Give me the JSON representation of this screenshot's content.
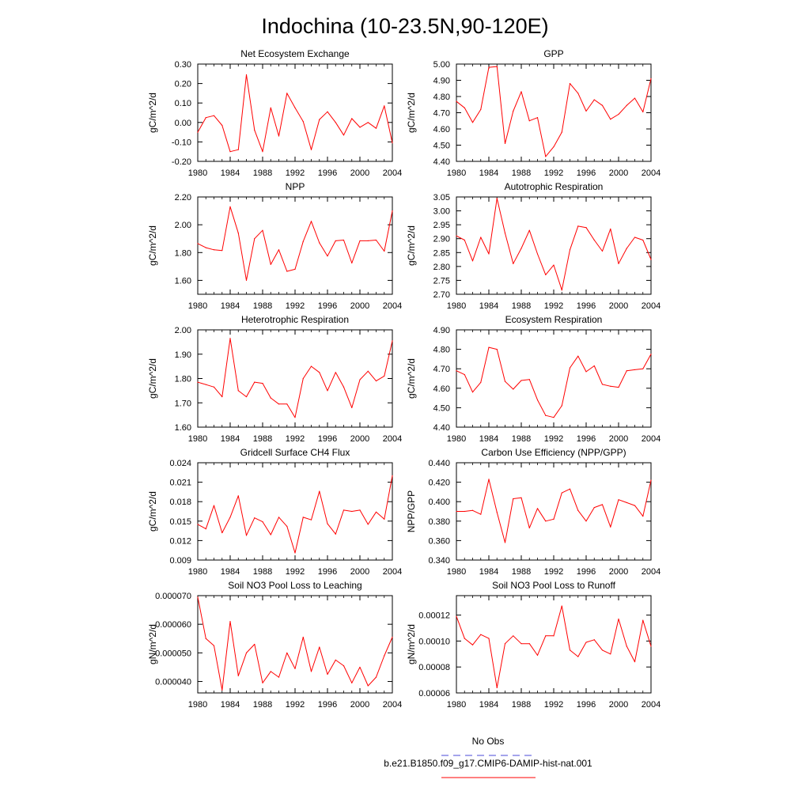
{
  "figure": {
    "title": "Indochina (10-23.5N,90-120E)"
  },
  "legend": {
    "entries": [
      {
        "label": "No Obs",
        "color": "#4a4ad8",
        "dash": "dashed"
      },
      {
        "label": "b.e21.B1850.f09_g17.CMIP6-DAMIP-hist-nat.001",
        "color": "#ff0000",
        "dash": "solid"
      }
    ]
  },
  "colors": {
    "series": "#ff0000",
    "axis": "#000000"
  },
  "chart_data": [
    {
      "type": "line",
      "title": "Net Ecosystem Exchange",
      "ylabel": "gC/m^2/d",
      "xlim": [
        1980,
        2004
      ],
      "ylim": [
        -0.2,
        0.3
      ],
      "xticks": [
        "1980",
        "1984",
        "1988",
        "1992",
        "1996",
        "2000",
        "2004"
      ],
      "yticks": [
        "-0.20",
        "-0.10",
        "0.00",
        "0.10",
        "0.20",
        "0.30"
      ],
      "x": [
        1980,
        1981,
        1982,
        1983,
        1984,
        1985,
        1986,
        1987,
        1988,
        1989,
        1990,
        1991,
        1992,
        1993,
        1994,
        1995,
        1996,
        1997,
        1998,
        1999,
        2000,
        2001,
        2002,
        2003,
        2004
      ],
      "series": [
        {
          "values": [
            -0.05,
            0.025,
            0.035,
            -0.015,
            -0.15,
            -0.14,
            0.245,
            -0.04,
            -0.15,
            0.075,
            -0.07,
            0.15,
            0.075,
            0.005,
            -0.14,
            0.015,
            0.055,
            0.0,
            -0.065,
            0.02,
            -0.025,
            0.0,
            -0.03,
            0.085,
            -0.105
          ]
        }
      ]
    },
    {
      "type": "line",
      "title": "GPP",
      "ylabel": "gC/m^2/d",
      "xlim": [
        1980,
        2004
      ],
      "ylim": [
        4.4,
        5.0
      ],
      "xticks": [
        "1980",
        "1984",
        "1988",
        "1992",
        "1996",
        "2000",
        "2004"
      ],
      "yticks": [
        "4.40",
        "4.50",
        "4.60",
        "4.70",
        "4.80",
        "4.90",
        "5.00"
      ],
      "x": [
        1980,
        1981,
        1982,
        1983,
        1984,
        1985,
        1986,
        1987,
        1988,
        1989,
        1990,
        1991,
        1992,
        1993,
        1994,
        1995,
        1996,
        1997,
        1998,
        1999,
        2000,
        2001,
        2002,
        2003,
        2004
      ],
      "series": [
        {
          "values": [
            4.77,
            4.73,
            4.64,
            4.72,
            4.98,
            4.985,
            4.51,
            4.71,
            4.83,
            4.65,
            4.67,
            4.43,
            4.49,
            4.58,
            4.88,
            4.82,
            4.71,
            4.78,
            4.745,
            4.66,
            4.69,
            4.745,
            4.79,
            4.705,
            4.91
          ]
        }
      ]
    },
    {
      "type": "line",
      "title": "NPP",
      "ylabel": "gC/m^2/d",
      "xlim": [
        1980,
        2004
      ],
      "ylim": [
        1.5,
        2.2
      ],
      "xticks": [
        "1980",
        "1984",
        "1988",
        "1992",
        "1996",
        "2000",
        "2004"
      ],
      "yticks": [
        "1.60",
        "1.80",
        "2.00",
        "2.20"
      ],
      "x": [
        1980,
        1981,
        1982,
        1983,
        1984,
        1985,
        1986,
        1987,
        1988,
        1989,
        1990,
        1991,
        1992,
        1993,
        1994,
        1995,
        1996,
        1997,
        1998,
        1999,
        2000,
        2001,
        2002,
        2003,
        2004
      ],
      "series": [
        {
          "values": [
            1.865,
            1.835,
            1.82,
            1.815,
            2.13,
            1.94,
            1.6,
            1.9,
            1.96,
            1.715,
            1.82,
            1.665,
            1.68,
            1.88,
            2.025,
            1.87,
            1.775,
            1.885,
            1.89,
            1.725,
            1.885,
            1.885,
            1.89,
            1.81,
            2.1
          ]
        }
      ]
    },
    {
      "type": "line",
      "title": "Autotrophic Respiration",
      "ylabel": "gC/m^2/d",
      "xlim": [
        1980,
        2004
      ],
      "ylim": [
        2.7,
        3.05
      ],
      "xticks": [
        "1980",
        "1984",
        "1988",
        "1992",
        "1996",
        "2000",
        "2004"
      ],
      "yticks": [
        "2.70",
        "2.75",
        "2.80",
        "2.85",
        "2.90",
        "2.95",
        "3.00",
        "3.05"
      ],
      "x": [
        1980,
        1981,
        1982,
        1983,
        1984,
        1985,
        1986,
        1987,
        1988,
        1989,
        1990,
        1991,
        1992,
        1993,
        1994,
        1995,
        1996,
        1997,
        1998,
        1999,
        2000,
        2001,
        2002,
        2003,
        2004
      ],
      "series": [
        {
          "values": [
            2.91,
            2.895,
            2.82,
            2.905,
            2.845,
            3.045,
            2.92,
            2.81,
            2.865,
            2.93,
            2.845,
            2.77,
            2.805,
            2.715,
            2.86,
            2.945,
            2.94,
            2.895,
            2.855,
            2.935,
            2.81,
            2.865,
            2.905,
            2.895,
            2.825
          ]
        }
      ]
    },
    {
      "type": "line",
      "title": "Heterotrophic Respiration",
      "ylabel": "gC/m^2/d",
      "xlim": [
        1980,
        2004
      ],
      "ylim": [
        1.6,
        2.0
      ],
      "xticks": [
        "1980",
        "1984",
        "1988",
        "1992",
        "1996",
        "2000",
        "2004"
      ],
      "yticks": [
        "1.60",
        "1.70",
        "1.80",
        "1.90",
        "2.00"
      ],
      "x": [
        1980,
        1981,
        1982,
        1983,
        1984,
        1985,
        1986,
        1987,
        1988,
        1989,
        1990,
        1991,
        1992,
        1993,
        1994,
        1995,
        1996,
        1997,
        1998,
        1999,
        2000,
        2001,
        2002,
        2003,
        2004
      ],
      "series": [
        {
          "values": [
            1.785,
            1.775,
            1.765,
            1.725,
            1.965,
            1.75,
            1.725,
            1.785,
            1.78,
            1.72,
            1.695,
            1.695,
            1.64,
            1.8,
            1.85,
            1.825,
            1.75,
            1.825,
            1.765,
            1.68,
            1.795,
            1.83,
            1.79,
            1.81,
            1.955
          ]
        }
      ]
    },
    {
      "type": "line",
      "title": "Ecosystem Respiration",
      "ylabel": "gC/m^2/d",
      "xlim": [
        1980,
        2004
      ],
      "ylim": [
        4.4,
        4.9
      ],
      "xticks": [
        "1980",
        "1984",
        "1988",
        "1992",
        "1996",
        "2000",
        "2004"
      ],
      "yticks": [
        "4.40",
        "4.50",
        "4.60",
        "4.70",
        "4.80",
        "4.90"
      ],
      "x": [
        1980,
        1981,
        1982,
        1983,
        1984,
        1985,
        1986,
        1987,
        1988,
        1989,
        1990,
        1991,
        1992,
        1993,
        1994,
        1995,
        1996,
        1997,
        1998,
        1999,
        2000,
        2001,
        2002,
        2003,
        2004
      ],
      "series": [
        {
          "values": [
            4.69,
            4.67,
            4.58,
            4.63,
            4.81,
            4.8,
            4.635,
            4.595,
            4.64,
            4.645,
            4.54,
            4.46,
            4.45,
            4.51,
            4.705,
            4.765,
            4.685,
            4.715,
            4.62,
            4.61,
            4.605,
            4.69,
            4.695,
            4.7,
            4.775
          ]
        }
      ]
    },
    {
      "type": "line",
      "title": "Gridcell Surface CH4 Flux",
      "ylabel": "gC/m^2/d",
      "xlim": [
        1980,
        2004
      ],
      "ylim": [
        0.009,
        0.024
      ],
      "xticks": [
        "1980",
        "1984",
        "1988",
        "1992",
        "1996",
        "2000",
        "2004"
      ],
      "yticks": [
        "0.009",
        "0.012",
        "0.015",
        "0.018",
        "0.021",
        "0.024"
      ],
      "x": [
        1980,
        1981,
        1982,
        1983,
        1984,
        1985,
        1986,
        1987,
        1988,
        1989,
        1990,
        1991,
        1992,
        1993,
        1994,
        1995,
        1996,
        1997,
        1998,
        1999,
        2000,
        2001,
        2002,
        2003,
        2004
      ],
      "series": [
        {
          "values": [
            0.0145,
            0.0138,
            0.0174,
            0.0132,
            0.0156,
            0.0189,
            0.0128,
            0.0155,
            0.0149,
            0.0129,
            0.0156,
            0.0142,
            0.0101,
            0.0156,
            0.0152,
            0.0196,
            0.0146,
            0.013,
            0.0167,
            0.0165,
            0.0167,
            0.0145,
            0.0164,
            0.0153,
            0.022
          ]
        }
      ]
    },
    {
      "type": "line",
      "title": "Carbon Use Efficiency (NPP/GPP)",
      "ylabel": "NPP/GPP",
      "xlim": [
        1980,
        2004
      ],
      "ylim": [
        0.34,
        0.44
      ],
      "xticks": [
        "1980",
        "1984",
        "1988",
        "1992",
        "1996",
        "2000",
        "2004"
      ],
      "yticks": [
        "0.340",
        "0.360",
        "0.380",
        "0.400",
        "0.420",
        "0.440"
      ],
      "x": [
        1980,
        1981,
        1982,
        1983,
        1984,
        1985,
        1986,
        1987,
        1988,
        1989,
        1990,
        1991,
        1992,
        1993,
        1994,
        1995,
        1996,
        1997,
        1998,
        1999,
        2000,
        2001,
        2002,
        2003,
        2004
      ],
      "series": [
        {
          "values": [
            0.39,
            0.39,
            0.391,
            0.387,
            0.423,
            0.389,
            0.358,
            0.403,
            0.404,
            0.373,
            0.393,
            0.38,
            0.382,
            0.409,
            0.413,
            0.391,
            0.38,
            0.394,
            0.397,
            0.374,
            0.402,
            0.399,
            0.396,
            0.385,
            0.422
          ]
        }
      ]
    },
    {
      "type": "line",
      "title": "Soil NO3 Pool Loss to Leaching",
      "ylabel": "gN/m^2/d",
      "xlim": [
        1980,
        2004
      ],
      "ylim": [
        3.6e-05,
        7e-05
      ],
      "xticks": [
        "1980",
        "1984",
        "1988",
        "1992",
        "1996",
        "2000",
        "2004"
      ],
      "yticks": [
        "0.000040",
        "0.000050",
        "0.000060",
        "0.000070"
      ],
      "x": [
        1980,
        1981,
        1982,
        1983,
        1984,
        1985,
        1986,
        1987,
        1988,
        1989,
        1990,
        1991,
        1992,
        1993,
        1994,
        1995,
        1996,
        1997,
        1998,
        1999,
        2000,
        2001,
        2002,
        2003,
        2004
      ],
      "series": [
        {
          "values": [
            6.95e-05,
            5.5e-05,
            5.25e-05,
            3.7e-05,
            6.1e-05,
            4.2e-05,
            5e-05,
            5.3e-05,
            3.95e-05,
            4.35e-05,
            4.15e-05,
            5e-05,
            4.45e-05,
            5.55e-05,
            4.35e-05,
            5.2e-05,
            4.25e-05,
            4.75e-05,
            4.55e-05,
            3.95e-05,
            4.5e-05,
            3.85e-05,
            4.15e-05,
            4.9e-05,
            5.55e-05
          ]
        }
      ]
    },
    {
      "type": "line",
      "title": "Soil NO3 Pool Loss to Runoff",
      "ylabel": "gN/m^2/d",
      "xlim": [
        1980,
        2004
      ],
      "ylim": [
        6e-05,
        0.000135
      ],
      "xticks": [
        "1980",
        "1984",
        "1988",
        "1992",
        "1996",
        "2000",
        "2004"
      ],
      "yticks": [
        "0.00006",
        "0.00008",
        "0.00010",
        "0.00012"
      ],
      "x": [
        1980,
        1981,
        1982,
        1983,
        1984,
        1985,
        1986,
        1987,
        1988,
        1989,
        1990,
        1991,
        1992,
        1993,
        1994,
        1995,
        1996,
        1997,
        1998,
        1999,
        2000,
        2001,
        2002,
        2003,
        2004
      ],
      "series": [
        {
          "values": [
            0.000119,
            0.000102,
            9.7e-05,
            0.000105,
            0.000102,
            6.4e-05,
            9.8e-05,
            0.000104,
            9.8e-05,
            9.8e-05,
            8.9e-05,
            0.000104,
            0.000104,
            0.000127,
            9.3e-05,
            8.8e-05,
            9.9e-05,
            0.000101,
            9.3e-05,
            9e-05,
            0.000117,
            9.6e-05,
            8.4e-05,
            0.000116,
            9.6e-05
          ]
        }
      ]
    }
  ]
}
